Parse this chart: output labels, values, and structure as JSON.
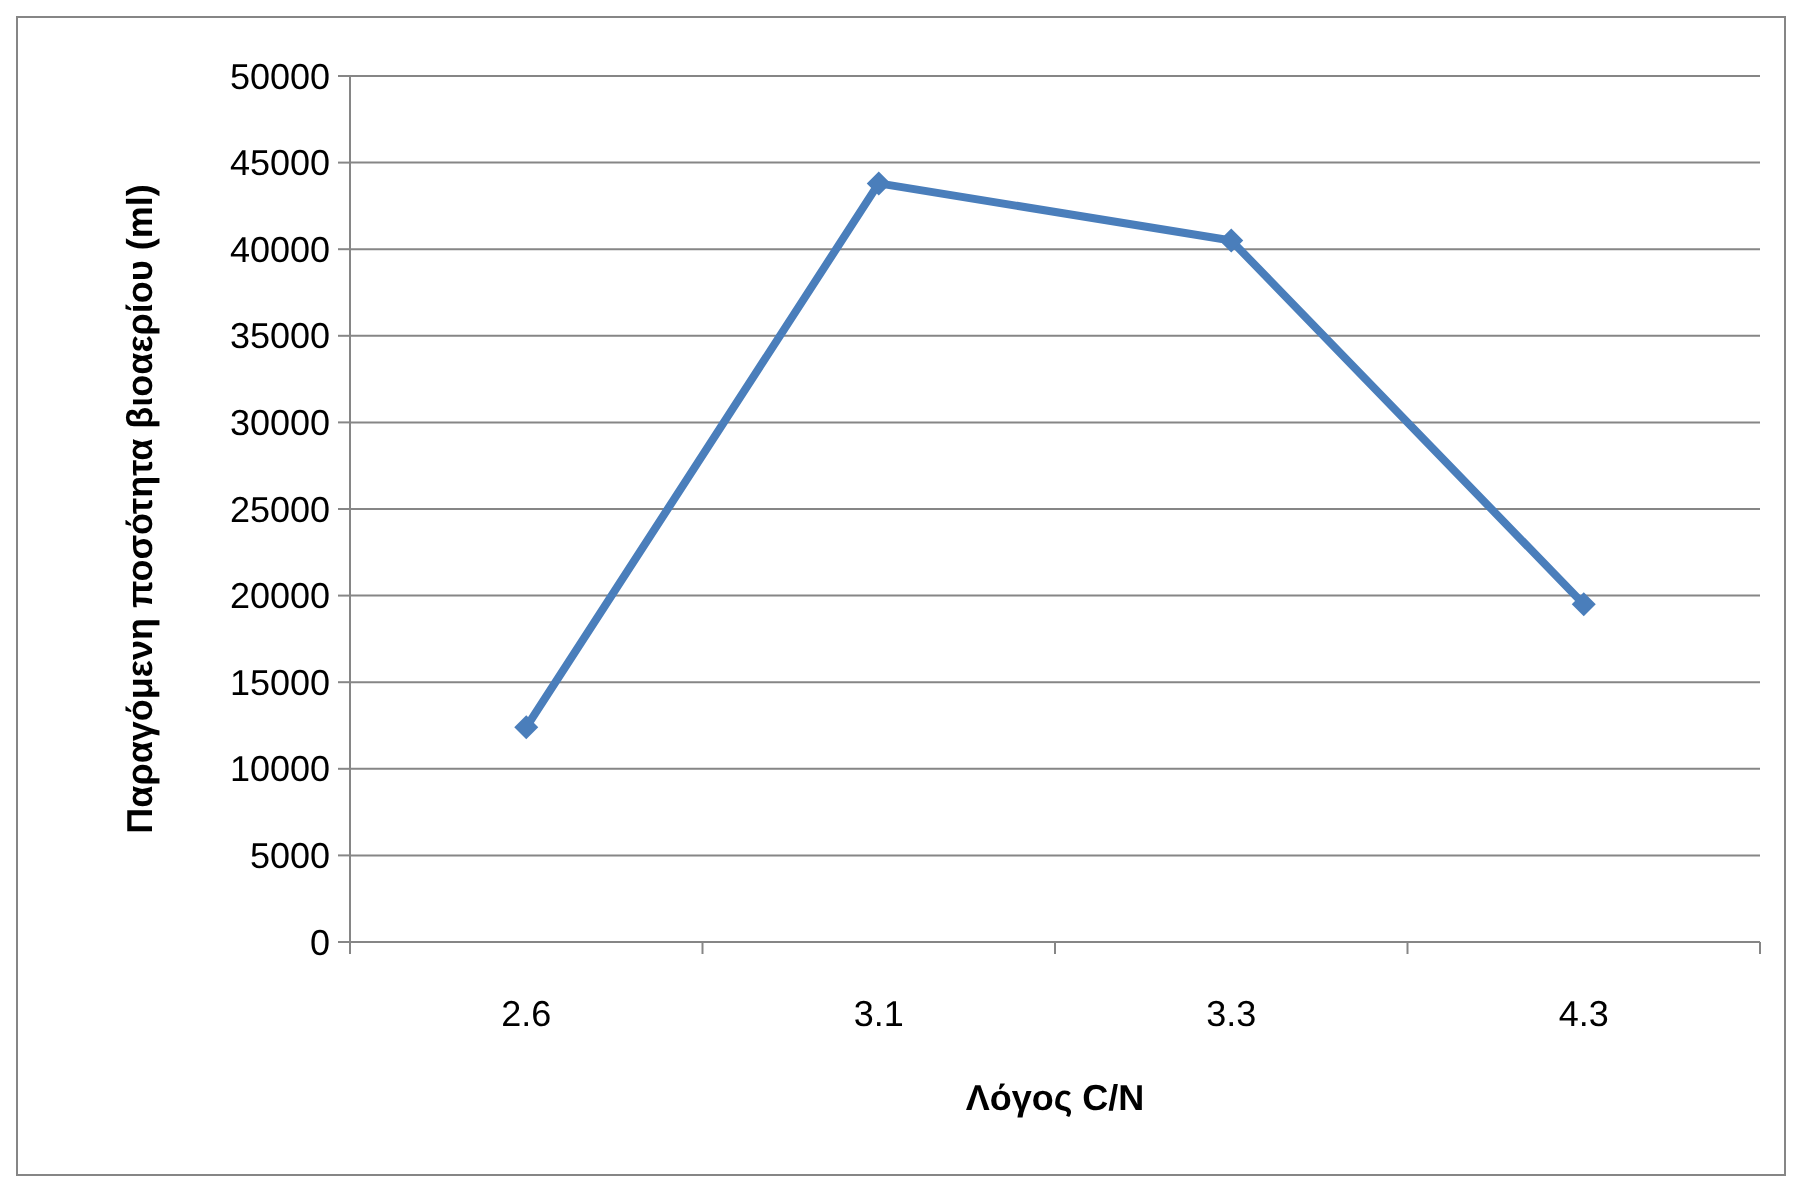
{
  "chart_data": {
    "type": "line",
    "xlabel": "Λόγος C/N",
    "ylabel": "Παραγόμενη ποσότητα βιοαερίου (ml)",
    "categories": [
      "2.6",
      "3.1",
      "3.3",
      "4.3"
    ],
    "series": [
      {
        "color": "#4a7ebb",
        "values": [
          12400,
          43800,
          40500,
          19500
        ]
      }
    ],
    "ylim": [
      0,
      50000
    ],
    "yticks": [
      0,
      5000,
      10000,
      15000,
      20000,
      25000,
      30000,
      35000,
      40000,
      45000,
      50000
    ],
    "grid": "y",
    "marker": "diamond",
    "line_style": "solid"
  }
}
